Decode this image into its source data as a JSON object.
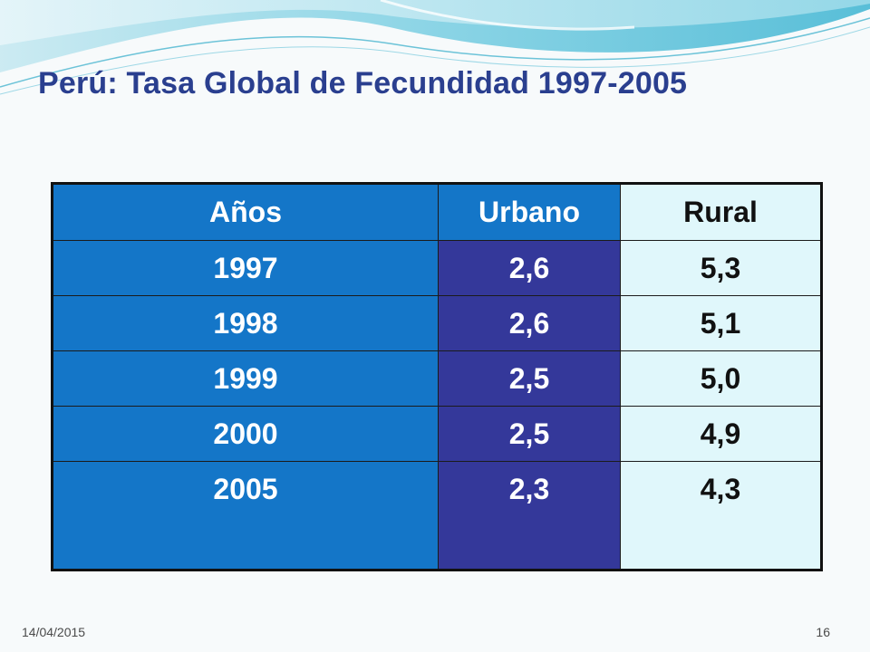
{
  "slide": {
    "title": "Perú: Tasa Global de Fecundidad 1997-2005",
    "table": {
      "headers": [
        "Años",
        "Urbano",
        "Rural"
      ],
      "rows": [
        [
          "1997",
          "2,6",
          "5,3"
        ],
        [
          "1998",
          "2,6",
          "5,1"
        ],
        [
          "1999",
          "2,5",
          "5,0"
        ],
        [
          "2000",
          "2,5",
          "4,9"
        ],
        [
          "2005",
          "2,3",
          "4,3"
        ]
      ]
    },
    "footer": {
      "date": "14/04/2015",
      "page": "16"
    }
  },
  "colors": {
    "title": "#2a3f8f",
    "year_col": "#1476c8",
    "urban_col": "#34389a",
    "rural_col": "#e0f7fb"
  }
}
